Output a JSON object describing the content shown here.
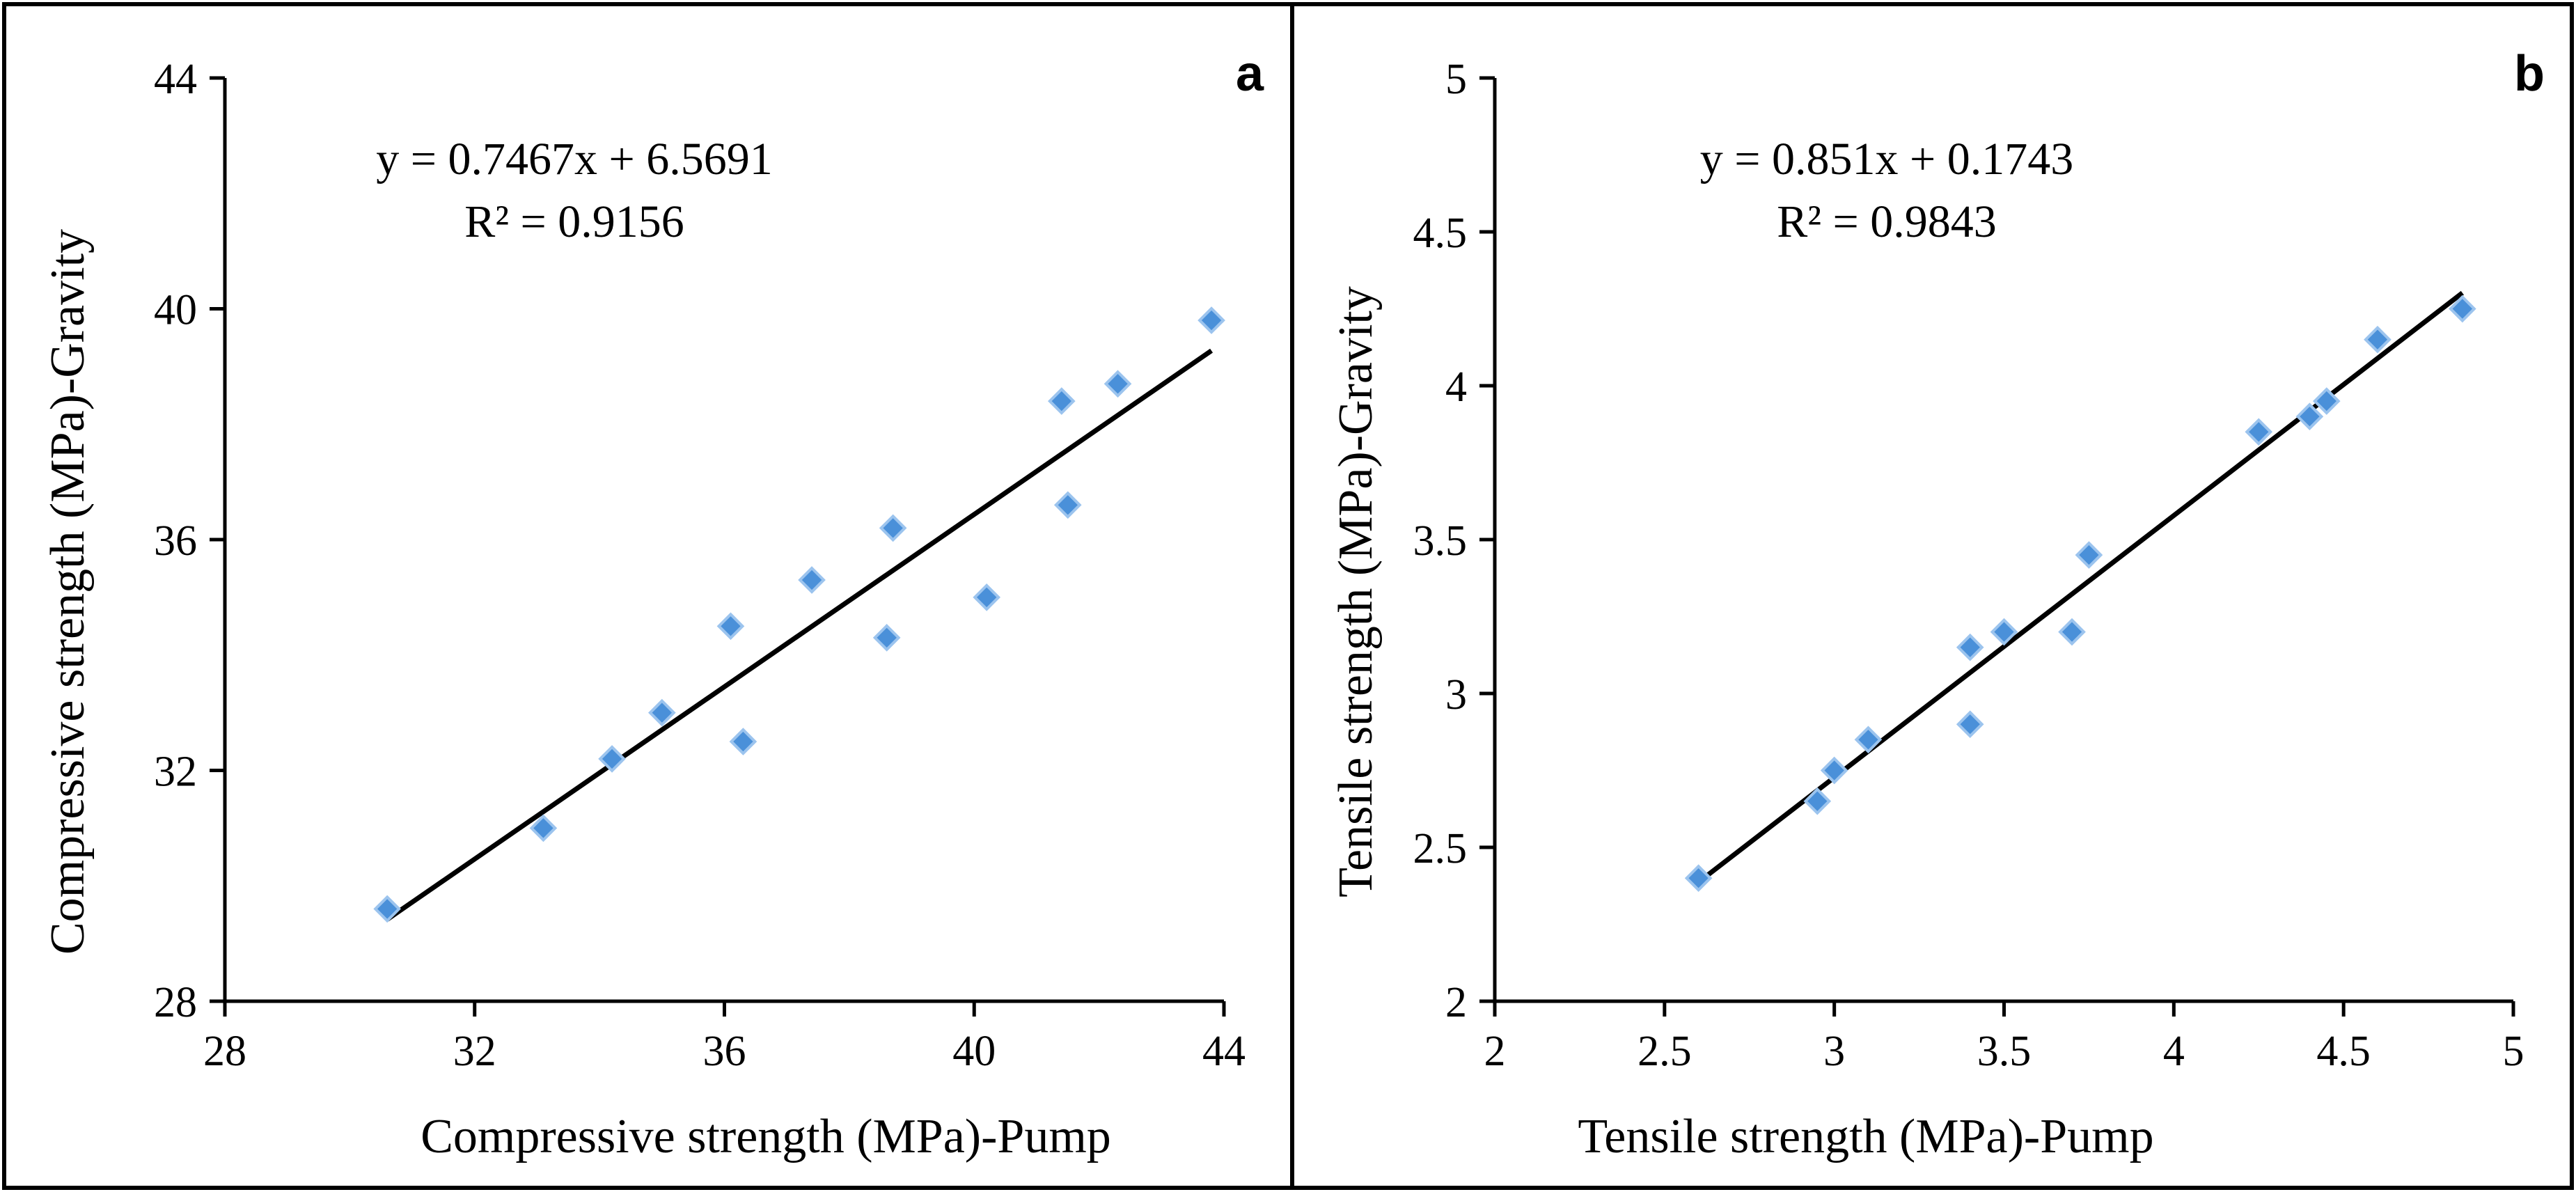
{
  "chart_data": [
    {
      "type": "scatter",
      "panel_label": "a",
      "xlabel": "Compressive strength (MPa)-Pump",
      "ylabel": "Compressive strength (MPa)-Gravity",
      "xlim": [
        28,
        44
      ],
      "ylim": [
        28,
        44
      ],
      "xticks": [
        28,
        32,
        36,
        40,
        44
      ],
      "yticks": [
        28,
        32,
        36,
        40,
        44
      ],
      "tick_labels_x": [
        "28",
        "32",
        "36",
        "40",
        "44"
      ],
      "tick_labels_y": [
        "28",
        "32",
        "36",
        "40",
        "44"
      ],
      "equation": "y = 0.7467x + 6.5691",
      "r_squared": "R² = 0.9156",
      "trendline": {
        "slope": 0.7467,
        "intercept": 6.5691,
        "x_range": [
          30.6,
          43.8
        ]
      },
      "marker_color": "#4a90d9",
      "points": [
        [
          30.6,
          29.6
        ],
        [
          33.1,
          31.0
        ],
        [
          34.2,
          32.2
        ],
        [
          35.0,
          33.0
        ],
        [
          36.1,
          34.5
        ],
        [
          36.3,
          32.5
        ],
        [
          37.4,
          35.3
        ],
        [
          38.6,
          34.3
        ],
        [
          38.7,
          36.2
        ],
        [
          40.2,
          35.0
        ],
        [
          41.4,
          38.4
        ],
        [
          41.5,
          36.6
        ],
        [
          42.3,
          38.7
        ],
        [
          43.8,
          39.8
        ]
      ]
    },
    {
      "type": "scatter",
      "panel_label": "b",
      "xlabel": "Tensile strength (MPa)-Pump",
      "ylabel": "Tensile strength (MPa)-Gravity",
      "xlim": [
        2,
        5
      ],
      "ylim": [
        2,
        5
      ],
      "xticks": [
        2,
        2.5,
        3,
        3.5,
        4,
        4.5,
        5
      ],
      "yticks": [
        2,
        2.5,
        3,
        3.5,
        4,
        4.5,
        5
      ],
      "tick_labels_x": [
        "2",
        "2.5",
        "3",
        "3.5",
        "4",
        "4.5",
        "5"
      ],
      "tick_labels_y": [
        "2",
        "2.5",
        "3",
        "3.5",
        "4",
        "4.5",
        "5"
      ],
      "equation": "y = 0.851x + 0.1743",
      "r_squared": "R² = 0.9843",
      "trendline": {
        "slope": 0.851,
        "intercept": 0.1743,
        "x_range": [
          2.6,
          4.85
        ]
      },
      "marker_color": "#4a90d9",
      "points": [
        [
          2.6,
          2.4
        ],
        [
          2.95,
          2.65
        ],
        [
          3.0,
          2.75
        ],
        [
          3.1,
          2.85
        ],
        [
          3.4,
          2.9
        ],
        [
          3.4,
          3.15
        ],
        [
          3.5,
          3.2
        ],
        [
          3.7,
          3.2
        ],
        [
          3.75,
          3.45
        ],
        [
          4.25,
          3.85
        ],
        [
          4.4,
          3.9
        ],
        [
          4.45,
          3.95
        ],
        [
          4.6,
          4.15
        ],
        [
          4.85,
          4.25
        ]
      ]
    }
  ]
}
